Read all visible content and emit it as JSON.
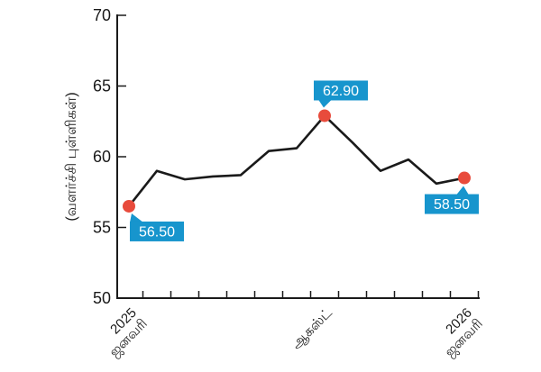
{
  "chart_data": {
    "type": "line",
    "title": "",
    "xlabel": "",
    "ylabel": "(வளர்ச்சி புள்ளிகள்)",
    "ylim": [
      50,
      70
    ],
    "yticks": [
      50,
      55,
      60,
      65,
      70
    ],
    "grid": false,
    "legend": false,
    "x_unit": "month",
    "num_points": 13,
    "values": [
      56.5,
      59.0,
      58.4,
      58.6,
      58.7,
      60.4,
      60.6,
      62.9,
      61.0,
      59.0,
      59.8,
      58.1,
      58.5
    ],
    "x_tick_labels": [
      {
        "index": 0,
        "lines": [
          "2025",
          "ஜனவரி"
        ]
      },
      {
        "index": 7,
        "lines": [
          "ஆகஸ்ட்"
        ]
      },
      {
        "index": 12,
        "lines": [
          "2026",
          "ஜனவரி"
        ]
      }
    ],
    "annotations": [
      {
        "index": 0,
        "label": "56.50",
        "placement": "below-right"
      },
      {
        "index": 7,
        "label": "62.90",
        "placement": "above"
      },
      {
        "index": 12,
        "label": "58.50",
        "placement": "below-left"
      }
    ],
    "colors": {
      "line": "#1a1a1a",
      "axis": "#1a1a1a",
      "tick_text": "#1a1a1a",
      "marker": "#e84b3c",
      "callout_bg": "#1795cd",
      "callout_text": "#ffffff",
      "background": "#ffffff"
    }
  }
}
